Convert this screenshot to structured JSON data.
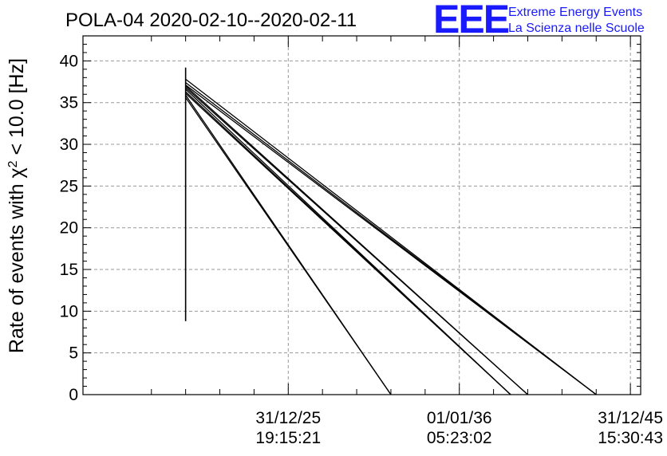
{
  "title": "POLA-04 2020-02-10--2020-02-11",
  "logo": {
    "mark": "EEE",
    "line1": "Extreme Energy Events",
    "line2": "La Scienza nelle Scuole",
    "color": "#1a1aff"
  },
  "chart_data": {
    "type": "line",
    "title": "POLA-04 2020-02-10--2020-02-11",
    "ylabel_prefix": "Rate of events with ",
    "ylabel_symbol": "χ",
    "ylabel_sup": "2",
    "ylabel_suffix": " < 10.0 [Hz]",
    "xlabel": "",
    "ylim": [
      0,
      43
    ],
    "yticks": [
      0,
      5,
      10,
      15,
      20,
      25,
      30,
      35,
      40
    ],
    "xlim": [
      -0.3,
      1.33
    ],
    "xticks": [
      {
        "pos": 0.3,
        "date": "31/12/25",
        "time": "19:15:21"
      },
      {
        "pos": 0.8,
        "date": "01/01/36",
        "time": "05:23:02"
      },
      {
        "pos": 1.3,
        "date": "31/12/45",
        "time": "15:30:43"
      }
    ],
    "grid": true,
    "vertical_segment": {
      "x": 0.0,
      "y0": 8.8,
      "y1": 39.2
    },
    "series": [
      {
        "points": [
          [
            0.0,
            37.8
          ],
          [
            1.2,
            0.0
          ]
        ]
      },
      {
        "points": [
          [
            0.0,
            37.4
          ],
          [
            1.2,
            0.0
          ]
        ]
      },
      {
        "points": [
          [
            0.0,
            37.1
          ],
          [
            1.2,
            0.0
          ]
        ]
      },
      {
        "points": [
          [
            0.0,
            37.0
          ],
          [
            1.0,
            0.0
          ]
        ]
      },
      {
        "points": [
          [
            0.0,
            36.8
          ],
          [
            1.0,
            0.0
          ]
        ]
      },
      {
        "points": [
          [
            0.0,
            36.6
          ],
          [
            0.95,
            0.0
          ]
        ]
      },
      {
        "points": [
          [
            0.0,
            36.3
          ],
          [
            0.95,
            0.0
          ]
        ]
      },
      {
        "points": [
          [
            0.0,
            36.1
          ],
          [
            0.95,
            0.0
          ]
        ]
      },
      {
        "points": [
          [
            0.0,
            35.9
          ],
          [
            0.6,
            0.0
          ]
        ]
      },
      {
        "points": [
          [
            0.0,
            35.6
          ],
          [
            0.6,
            0.0
          ]
        ]
      }
    ]
  }
}
